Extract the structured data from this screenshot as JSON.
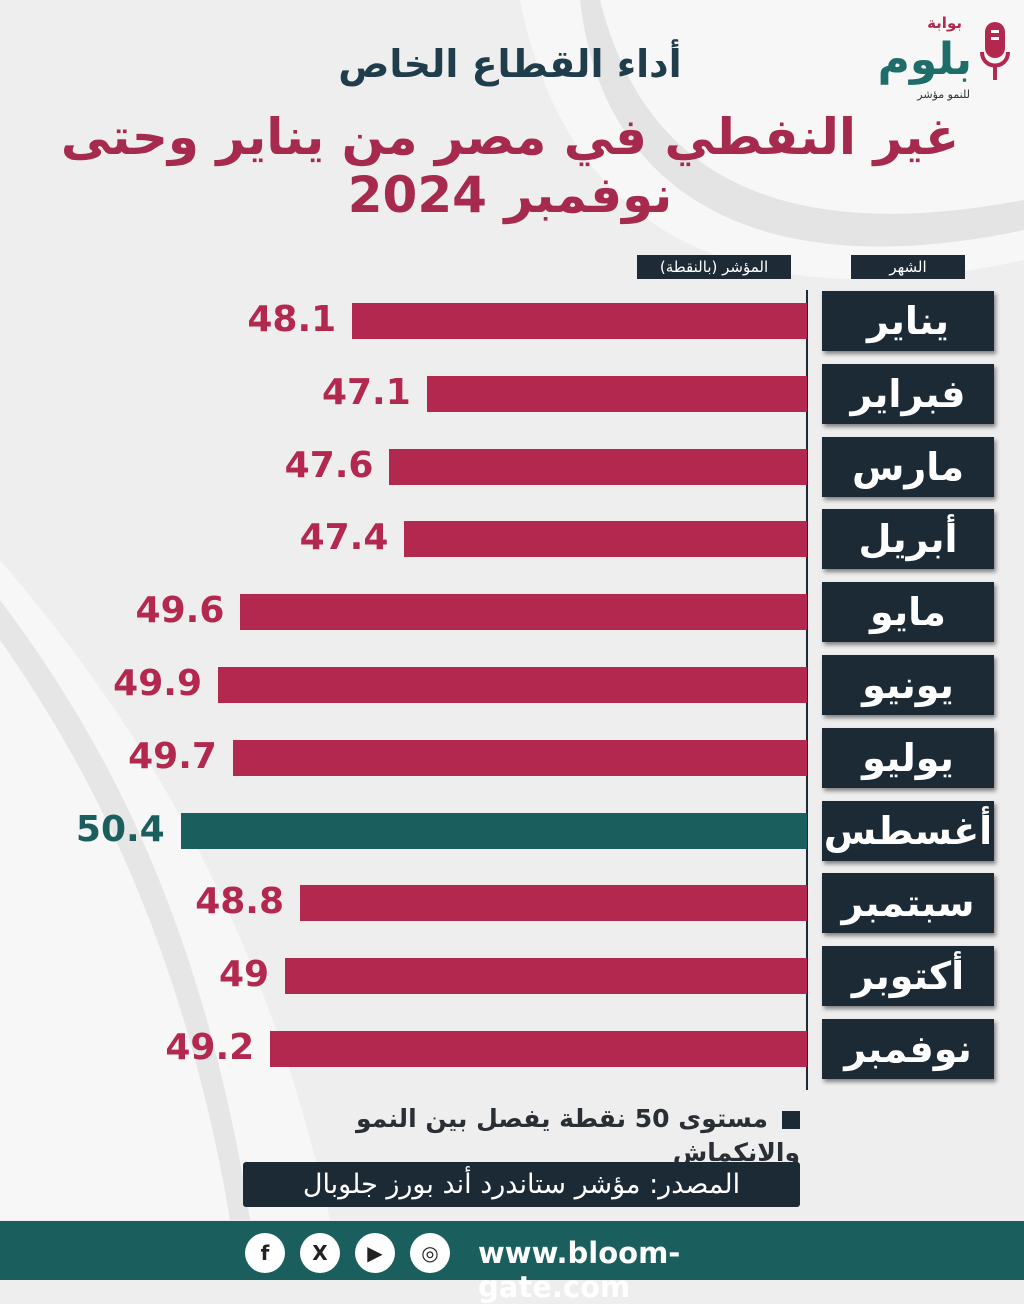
{
  "logo": {
    "small": "بوابة",
    "main": "بلوم",
    "tagline": "للنمو مؤشر"
  },
  "title": {
    "line1": "أداء القطاع الخاص",
    "line2": "غير النفطي في مصر من يناير وحتى نوفمبر 2024"
  },
  "headers": {
    "month": "الشهر",
    "index": "المؤشر (بالنقطة)"
  },
  "chart_data": {
    "type": "bar",
    "orientation": "horizontal",
    "categories": [
      "يناير",
      "فبراير",
      "مارس",
      "أبريل",
      "مايو",
      "يونيو",
      "يوليو",
      "أغسطس",
      "سبتمبر",
      "أكتوبر",
      "نوفمبر"
    ],
    "values": [
      48.1,
      47.1,
      47.6,
      47.4,
      49.6,
      49.9,
      49.7,
      50.4,
      48.8,
      49,
      49.2
    ],
    "value_labels": [
      "48.1",
      "47.1",
      "47.6",
      "47.4",
      "49.6",
      "49.9",
      "49.7",
      "50.4",
      "48.8",
      "49",
      "49.2"
    ],
    "title": "أداء القطاع الخاص غير النفطي في مصر من يناير وحتى نوفمبر 2024",
    "xlabel": "المؤشر (بالنقطة)",
    "ylabel": "الشهر",
    "xlim": [
      42,
      51
    ],
    "highlight_threshold": 50
  },
  "colors": {
    "bar": "#b3284f",
    "highlight": "#1a5f5e",
    "label": "#b3284f",
    "highlight_label": "#1a5f5e",
    "dark": "#1c2a36"
  },
  "note": "مستوى 50 نقطة يفصل بين النمو والانكماش",
  "source": "المصدر: مؤشر ستاندرد أند بورز جلوبال",
  "footer": {
    "website": "www.bloom-gate.com",
    "social": [
      {
        "icon": "instagram-icon",
        "glyph": "◎"
      },
      {
        "icon": "youtube-icon",
        "glyph": "▶"
      },
      {
        "icon": "x-icon",
        "glyph": "X"
      },
      {
        "icon": "facebook-icon",
        "glyph": "f"
      }
    ]
  }
}
